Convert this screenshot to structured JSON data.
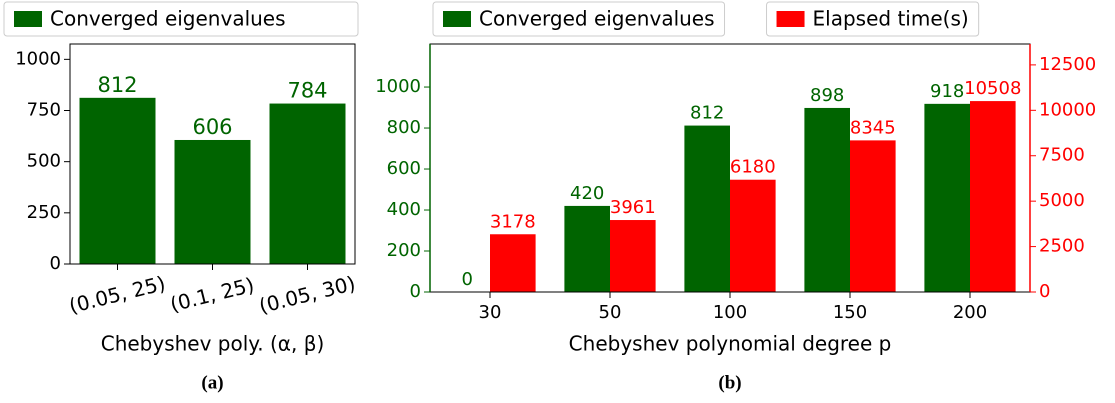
{
  "chart_data": [
    {
      "type": "bar",
      "caption": "(a)",
      "x_label": "Chebyshev poly. (α, β)",
      "categories": [
        "(0.05, 25)",
        "(0.1, 25)",
        "(0.05, 30)"
      ],
      "series": [
        {
          "name": "Converged eigenvalues",
          "color": "#006400",
          "values": [
            812,
            606,
            784
          ]
        }
      ],
      "ylim": [
        0,
        1075
      ],
      "yticks": [
        0,
        250,
        500,
        750,
        1000
      ],
      "grid": false,
      "legend": "top"
    },
    {
      "type": "bar",
      "caption": "(b)",
      "x_label": "Chebyshev polynomial degree p",
      "categories": [
        "30",
        "50",
        "100",
        "150",
        "200"
      ],
      "series": [
        {
          "name": "Converged eigenvalues",
          "color": "#006400",
          "values": [
            0,
            420,
            812,
            898,
            918
          ]
        },
        {
          "name": "Elapsed time(s)",
          "color": "#ff0000",
          "axis": "y2",
          "values": [
            3178,
            3961,
            6180,
            8345,
            10508
          ]
        }
      ],
      "ylim": [
        0,
        1210
      ],
      "yticks": [
        0,
        200,
        400,
        600,
        800,
        1000
      ],
      "y2lim": [
        0,
        13650
      ],
      "y2ticks": [
        0,
        2500,
        5000,
        7500,
        10000,
        12500
      ],
      "grid": false,
      "legend": "top"
    }
  ]
}
